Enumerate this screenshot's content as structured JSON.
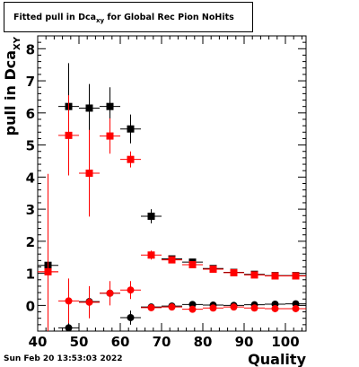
{
  "title": {
    "prefix": "Fitted pull in Dca",
    "subscript": "xy",
    "suffix": " for Global Rec Pion NoHits"
  },
  "timestamp": "Sun Feb 20 13:53:03 2022",
  "chart_data": {
    "type": "scatter",
    "xlabel": "Quality",
    "ylabel": {
      "main": "pull in Dca",
      "subscript": "XY"
    },
    "xlim": [
      40,
      105
    ],
    "ylim": [
      -0.8,
      8.4
    ],
    "xticks": [
      40,
      50,
      60,
      70,
      80,
      90,
      100
    ],
    "yticks": [
      0,
      1,
      2,
      3,
      4,
      5,
      6,
      7,
      8
    ],
    "grid": false,
    "legend": "none",
    "series": [
      {
        "marker": "square",
        "color": "#000000",
        "x": [
          42.5,
          47.5,
          52.5,
          57.5,
          62.5,
          67.5,
          72.5,
          77.5,
          82.5,
          87.5,
          92.5,
          97.5,
          102.5
        ],
        "y": [
          1.25,
          6.2,
          6.15,
          6.2,
          5.5,
          2.78,
          1.45,
          1.35,
          1.15,
          1.03,
          0.97,
          0.93,
          0.93
        ],
        "yerr": [
          0.3,
          1.35,
          0.75,
          0.6,
          0.45,
          0.22,
          0.06,
          0.05,
          0.04,
          0.04,
          0.04,
          0.04,
          0.04
        ]
      },
      {
        "marker": "square",
        "color": "#ff0000",
        "x": [
          42.5,
          47.5,
          52.5,
          57.5,
          62.5,
          67.5,
          72.5,
          77.5,
          82.5,
          87.5,
          92.5,
          97.5,
          102.5
        ],
        "y": [
          1.05,
          5.3,
          4.12,
          5.28,
          4.55,
          1.57,
          1.42,
          1.27,
          1.13,
          1.02,
          0.95,
          0.92,
          0.92
        ],
        "yerr": [
          3.05,
          1.25,
          1.35,
          0.55,
          0.25,
          0.14,
          0.06,
          0.05,
          0.04,
          0.04,
          0.04,
          0.04,
          0.04
        ]
      },
      {
        "marker": "circle",
        "color": "#000000",
        "x": [
          47.5,
          52.5,
          57.5,
          62.5,
          67.5,
          72.5,
          77.5,
          82.5,
          87.5,
          92.5,
          97.5,
          102.5
        ],
        "y": [
          -0.7,
          0.12,
          0.38,
          -0.38,
          -0.05,
          -0.02,
          0.03,
          0.01,
          0.0,
          0.02,
          0.04,
          0.05
        ],
        "yerr": [
          0.25,
          0.45,
          0.28,
          0.22,
          0.08,
          0.05,
          0.04,
          0.03,
          0.03,
          0.03,
          0.03,
          0.03
        ]
      },
      {
        "marker": "circle",
        "color": "#ff0000",
        "x": [
          42.5,
          47.5,
          52.5,
          57.5,
          62.5,
          67.5,
          72.5,
          77.5,
          82.5,
          87.5,
          92.5,
          97.5,
          102.5
        ],
        "y": [
          1.05,
          0.14,
          0.1,
          0.38,
          0.48,
          -0.07,
          -0.05,
          -0.12,
          -0.08,
          -0.05,
          -0.08,
          -0.1,
          -0.1
        ],
        "yerr": [
          1.3,
          0.7,
          0.5,
          0.38,
          0.28,
          0.08,
          0.05,
          0.04,
          0.04,
          0.03,
          0.03,
          0.03,
          0.03
        ]
      }
    ]
  }
}
